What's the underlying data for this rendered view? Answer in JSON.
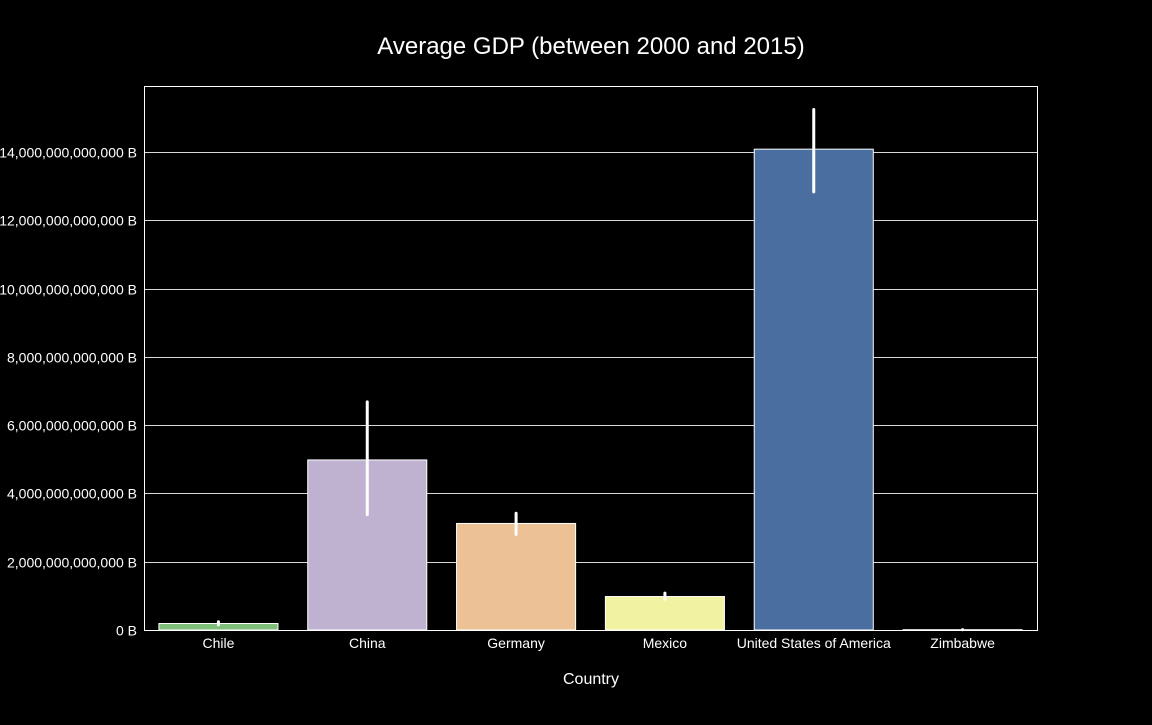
{
  "chart_data": {
    "type": "bar",
    "title": "Average GDP (between 2000 and 2015)",
    "xlabel": "Country",
    "ylabel": "",
    "categories": [
      "Chile",
      "China",
      "Germany",
      "Mexico",
      "United States of America",
      "Zimbabwe"
    ],
    "values": [
      190000000000,
      4980000000000,
      3120000000000,
      980000000000,
      14080000000000,
      9000000000
    ],
    "error_bars": [
      {
        "low": 150000000000,
        "high": 240000000000
      },
      {
        "low": 3380000000000,
        "high": 6680000000000
      },
      {
        "low": 2800000000000,
        "high": 3420000000000
      },
      {
        "low": 900000000000,
        "high": 1080000000000
      },
      {
        "low": 12830000000000,
        "high": 15240000000000
      },
      {
        "low": 7000000000,
        "high": 11000000000
      }
    ],
    "colors": [
      "#7fbf7b",
      "#bfb2d0",
      "#ecc196",
      "#f2f3a2",
      "#4a6ea0",
      "#8c4a3c"
    ],
    "ylim": [
      0,
      16000000000000
    ],
    "yticks": [
      0,
      2000000000000,
      4000000000000,
      6000000000000,
      8000000000000,
      10000000000000,
      12000000000000,
      14000000000000
    ],
    "ytick_labels": [
      "0 B",
      "2,000,000,000,000 B",
      "4,000,000,000,000 B",
      "6,000,000,000,000 B",
      "8,000,000,000,000 B",
      "10,000,000,000,000 B",
      "12,000,000,000,000 B",
      "14,000,000,000,000 B"
    ],
    "grid": true,
    "background": "#000000",
    "foreground": "#ffffff"
  }
}
